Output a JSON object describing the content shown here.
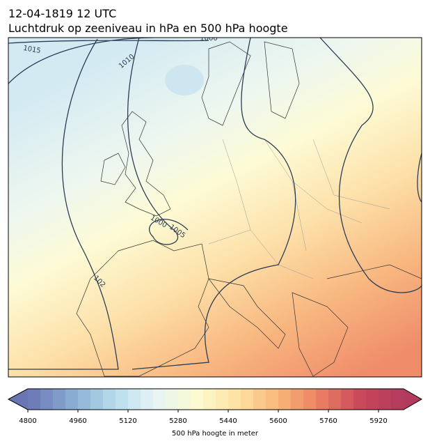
{
  "header": {
    "date": "12-04-1819 12 UTC",
    "title": "Luchtdruk op zeeniveau in hPa en 500 hPa hoogte"
  },
  "map": {
    "contour_labels": [
      "1015",
      "1010",
      "1000",
      "1000",
      "1005",
      "102"
    ]
  },
  "colorbar": {
    "label": "500 hPa hoogte in meter",
    "lim": [
      4800,
      6000
    ],
    "step": 40,
    "ticks": [
      4800,
      4960,
      5120,
      5280,
      5440,
      5600,
      5760,
      5920
    ],
    "colormap": [
      "#6a75b3",
      "#86a9d0",
      "#b3d9ea",
      "#e4f3f6",
      "#fbfbd2",
      "#fde3a4",
      "#f8b678",
      "#ea7f62",
      "#c8465a",
      "#b23a5c"
    ]
  }
}
